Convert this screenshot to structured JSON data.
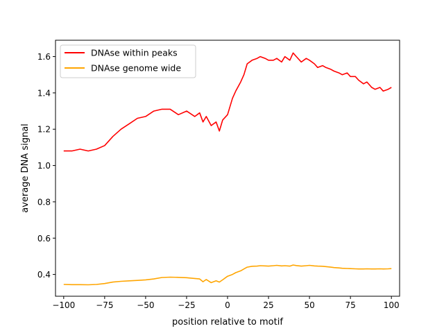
{
  "chart_data": {
    "type": "line",
    "title": "",
    "xlabel": "position relative to motif",
    "ylabel": "average DNA signal",
    "xlim": [
      -105,
      105
    ],
    "ylim": [
      0.28,
      1.69
    ],
    "xticks": [
      -100,
      -75,
      -50,
      -25,
      0,
      25,
      50,
      75,
      100
    ],
    "xtick_labels": [
      "−100",
      "−75",
      "−50",
      "−25",
      "0",
      "25",
      "50",
      "75",
      "100"
    ],
    "yticks": [
      0.4,
      0.6,
      0.8,
      1.0,
      1.2,
      1.4,
      1.6
    ],
    "ytick_labels": [
      "0.4",
      "0.6",
      "0.8",
      "1.0",
      "1.2",
      "1.4",
      "1.6"
    ],
    "grid": false,
    "legend_position": "top-left",
    "x": [
      -100,
      -95,
      -90,
      -85,
      -80,
      -75,
      -70,
      -65,
      -60,
      -55,
      -50,
      -45,
      -40,
      -35,
      -30,
      -25,
      -20,
      -17,
      -15,
      -13,
      -10,
      -7,
      -5,
      -3,
      0,
      3,
      5,
      8,
      10,
      12,
      15,
      18,
      20,
      23,
      25,
      28,
      30,
      33,
      35,
      38,
      40,
      42,
      45,
      48,
      50,
      53,
      55,
      58,
      60,
      63,
      65,
      68,
      70,
      73,
      75,
      78,
      80,
      83,
      85,
      88,
      90,
      93,
      95,
      98,
      100
    ],
    "series": [
      {
        "name": "DNAse within peaks",
        "color": "#ff0000",
        "values": [
          1.08,
          1.08,
          1.09,
          1.08,
          1.09,
          1.11,
          1.16,
          1.2,
          1.23,
          1.26,
          1.27,
          1.3,
          1.31,
          1.31,
          1.28,
          1.3,
          1.27,
          1.29,
          1.24,
          1.27,
          1.22,
          1.24,
          1.19,
          1.25,
          1.28,
          1.37,
          1.41,
          1.46,
          1.5,
          1.56,
          1.58,
          1.59,
          1.6,
          1.59,
          1.58,
          1.58,
          1.59,
          1.57,
          1.6,
          1.58,
          1.62,
          1.6,
          1.57,
          1.59,
          1.58,
          1.56,
          1.54,
          1.55,
          1.54,
          1.53,
          1.52,
          1.51,
          1.5,
          1.51,
          1.49,
          1.49,
          1.47,
          1.45,
          1.46,
          1.43,
          1.42,
          1.43,
          1.41,
          1.42,
          1.43
        ]
      },
      {
        "name": "DNAse genome wide",
        "color": "#ffa500",
        "values": [
          0.345,
          0.344,
          0.344,
          0.343,
          0.345,
          0.35,
          0.358,
          0.362,
          0.365,
          0.367,
          0.37,
          0.375,
          0.383,
          0.385,
          0.384,
          0.382,
          0.378,
          0.375,
          0.36,
          0.372,
          0.355,
          0.365,
          0.358,
          0.37,
          0.39,
          0.4,
          0.41,
          0.42,
          0.43,
          0.44,
          0.445,
          0.446,
          0.448,
          0.447,
          0.446,
          0.448,
          0.45,
          0.447,
          0.448,
          0.446,
          0.452,
          0.449,
          0.446,
          0.448,
          0.45,
          0.447,
          0.446,
          0.445,
          0.443,
          0.44,
          0.438,
          0.436,
          0.434,
          0.433,
          0.432,
          0.431,
          0.43,
          0.43,
          0.431,
          0.43,
          0.43,
          0.431,
          0.43,
          0.431,
          0.432
        ]
      }
    ]
  }
}
